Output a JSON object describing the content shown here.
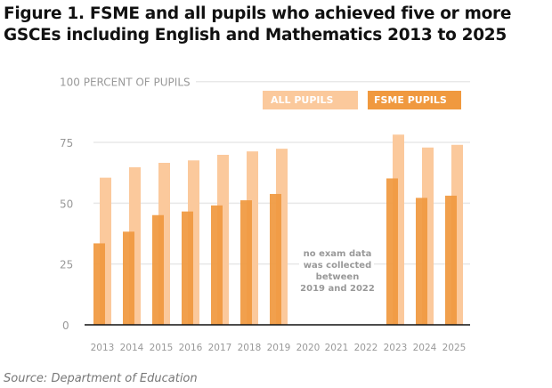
{
  "title": "Figure 1. FSME and all pupils who achieved five or more GSCEs including English and Mathematics 2013 to 2025",
  "source": "Source: Department of Education",
  "colors": {
    "all_pupils": "#fbc99c",
    "fsme_pupils": "#f0993f",
    "grid": "#e8e8e8",
    "axis": "#111111",
    "text": "#999999"
  },
  "chart_data": {
    "type": "bar",
    "ylabel": "PERCENT OF PUPILS",
    "ylim": [
      0,
      100
    ],
    "yticks": [
      0,
      25,
      50,
      75,
      100
    ],
    "grid": true,
    "legend_placement": "top-right",
    "categories": [
      "2013",
      "2014",
      "2015",
      "2016",
      "2017",
      "2018",
      "2019",
      "2020",
      "2021",
      "2022",
      "2023",
      "2024",
      "2025"
    ],
    "series": [
      {
        "name": "ALL PUPILS",
        "values": [
          60.5,
          64.8,
          66.6,
          67.6,
          69.9,
          71.3,
          72.4,
          null,
          null,
          null,
          78.2,
          72.9,
          74.0
        ]
      },
      {
        "name": "FSME PUPILS",
        "values": [
          33.5,
          38.3,
          45.1,
          46.6,
          49.1,
          51.2,
          53.8,
          null,
          null,
          null,
          60.2,
          52.2,
          53.1
        ]
      }
    ],
    "annotation": [
      "no exam data",
      "was collected",
      "between",
      "2019 and 2022"
    ]
  }
}
